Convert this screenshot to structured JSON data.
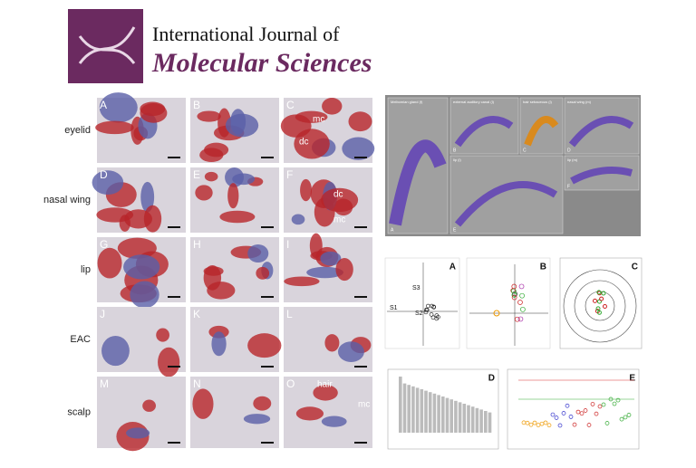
{
  "header": {
    "line1": "International Journal of",
    "line2": "Molecular Sciences"
  },
  "histology": {
    "rows": [
      {
        "label": "eyelid",
        "panels": [
          "A",
          "B",
          "C"
        ]
      },
      {
        "label": "nasal wing",
        "panels": [
          "D",
          "E",
          "F"
        ]
      },
      {
        "label": "lip",
        "panels": [
          "G",
          "H",
          "I"
        ]
      },
      {
        "label": "EAC",
        "panels": [
          "J",
          "K",
          "L"
        ]
      },
      {
        "label": "scalp",
        "panels": [
          "M",
          "N",
          "O"
        ]
      }
    ],
    "annotations": [
      "mc",
      "dc",
      "dc",
      "mc",
      "hair",
      "mc"
    ]
  },
  "renders": {
    "labels": [
      "Meibomian gland (f)",
      "external auditory canal (l)",
      "hair sebaceous (l)",
      "nasal wing (m)",
      "lip (l)",
      "lip (m)"
    ],
    "letters": [
      "A",
      "B",
      "C",
      "D",
      "E",
      "F"
    ]
  },
  "plots": {
    "letters": [
      "A",
      "B",
      "C",
      "D",
      "E"
    ],
    "groups": [
      "S1",
      "S2",
      "S3"
    ]
  }
}
